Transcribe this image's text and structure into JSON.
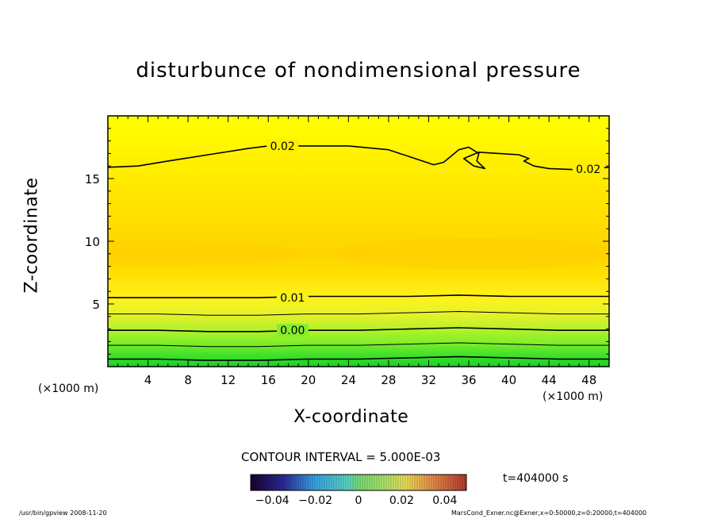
{
  "chart_data": {
    "type": "heatmap",
    "title": "disturbunce of nondimensional pressure",
    "xlabel": "X-coordinate",
    "ylabel": "Z-coordinate",
    "x_unit": "(×1000 m)",
    "xlim": [
      0,
      50
    ],
    "ylim": [
      0,
      20
    ],
    "x_ticks": [
      4,
      8,
      12,
      16,
      20,
      24,
      28,
      32,
      36,
      40,
      44,
      48
    ],
    "y_ticks": [
      5,
      10,
      15
    ],
    "color_levels": [
      {
        "z": 0.0,
        "value": -0.002,
        "color": "#1ecf2a"
      },
      {
        "z": 0.6,
        "value": 0.0,
        "color": "#2fdc2a"
      },
      {
        "z": 1.3,
        "value": 0.003,
        "color": "#58e62a"
      },
      {
        "z": 2.0,
        "value": 0.006,
        "color": "#86ee2a"
      },
      {
        "z": 2.8,
        "value": 0.009,
        "color": "#abf22a"
      },
      {
        "z": 3.5,
        "value": 0.012,
        "color": "#ccf12a"
      },
      {
        "z": 4.3,
        "value": 0.015,
        "color": "#e8f22a"
      },
      {
        "z": 5.5,
        "value": 0.02,
        "color": "#fff21c"
      },
      {
        "z": 7.5,
        "value": 0.024,
        "color": "#ffdf00"
      },
      {
        "z": 9.0,
        "value": 0.027,
        "color": "#ffd400"
      },
      {
        "z": 11.5,
        "value": 0.025,
        "color": "#ffdd00"
      },
      {
        "z": 14.0,
        "value": 0.023,
        "color": "#ffe600"
      },
      {
        "z": 16.0,
        "value": 0.02,
        "color": "#fff000"
      },
      {
        "z": 20.0,
        "value": 0.017,
        "color": "#ffff00"
      }
    ],
    "contours": [
      {
        "level": 0.02,
        "label": "0.02",
        "points": [
          [
            0,
            15.9
          ],
          [
            3,
            16.0
          ],
          [
            6,
            16.4
          ],
          [
            10,
            16.9
          ],
          [
            14,
            17.4
          ],
          [
            16,
            17.6
          ],
          [
            19,
            17.6
          ],
          [
            24,
            17.6
          ],
          [
            28,
            17.3
          ],
          [
            31,
            16.5
          ],
          [
            32.5,
            16.1
          ],
          [
            33.5,
            16.3
          ],
          [
            35,
            17.3
          ],
          [
            36,
            17.5
          ],
          [
            37,
            17.0
          ],
          [
            36.8,
            16.4
          ],
          [
            37.6,
            15.8
          ],
          [
            36.5,
            16.0
          ],
          [
            35.5,
            16.6
          ],
          [
            37,
            17.1
          ],
          [
            39,
            17.0
          ],
          [
            41,
            16.9
          ],
          [
            42,
            16.6
          ],
          [
            41.5,
            16.4
          ],
          [
            42.5,
            16.0
          ],
          [
            44,
            15.8
          ],
          [
            47,
            15.7
          ],
          [
            50,
            15.9
          ]
        ]
      },
      {
        "level": 0.02,
        "label": "0.02",
        "points": [
          [
            0,
            5.5
          ],
          [
            5,
            5.5
          ],
          [
            10,
            5.5
          ],
          [
            15,
            5.5
          ],
          [
            20,
            5.6
          ],
          [
            25,
            5.6
          ],
          [
            30,
            5.6
          ],
          [
            35,
            5.7
          ],
          [
            40,
            5.6
          ],
          [
            45,
            5.6
          ],
          [
            50,
            5.6
          ]
        ]
      },
      {
        "level": 0.015,
        "label": "",
        "points": [
          [
            0,
            4.2
          ],
          [
            5,
            4.2
          ],
          [
            10,
            4.1
          ],
          [
            15,
            4.1
          ],
          [
            20,
            4.2
          ],
          [
            25,
            4.2
          ],
          [
            30,
            4.3
          ],
          [
            35,
            4.4
          ],
          [
            40,
            4.3
          ],
          [
            45,
            4.2
          ],
          [
            50,
            4.2
          ]
        ]
      },
      {
        "level": 0.01,
        "label": "0.01",
        "points": [
          [
            0,
            2.9
          ],
          [
            5,
            2.9
          ],
          [
            10,
            2.8
          ],
          [
            15,
            2.8
          ],
          [
            20,
            2.9
          ],
          [
            25,
            2.9
          ],
          [
            30,
            3.0
          ],
          [
            35,
            3.1
          ],
          [
            40,
            3.0
          ],
          [
            45,
            2.9
          ],
          [
            50,
            2.9
          ]
        ]
      },
      {
        "level": 0.005,
        "label": "",
        "points": [
          [
            0,
            1.7
          ],
          [
            5,
            1.7
          ],
          [
            10,
            1.6
          ],
          [
            15,
            1.6
          ],
          [
            20,
            1.7
          ],
          [
            25,
            1.7
          ],
          [
            30,
            1.8
          ],
          [
            35,
            1.9
          ],
          [
            40,
            1.8
          ],
          [
            45,
            1.7
          ],
          [
            50,
            1.7
          ]
        ]
      },
      {
        "level": 0.0,
        "label": "0.00",
        "points": [
          [
            0,
            0.6
          ],
          [
            5,
            0.6
          ],
          [
            10,
            0.5
          ],
          [
            15,
            0.5
          ],
          [
            20,
            0.6
          ],
          [
            25,
            0.6
          ],
          [
            30,
            0.7
          ],
          [
            35,
            0.8
          ],
          [
            40,
            0.7
          ],
          [
            45,
            0.6
          ],
          [
            50,
            0.6
          ]
        ]
      }
    ],
    "label_positions": [
      [
        16,
        17.6
      ],
      [
        46.5,
        15.75
      ],
      [
        17,
        5.5
      ],
      [
        17,
        2.9
      ],
      [
        17,
        0.55
      ]
    ],
    "colorbar": {
      "vmin": -0.05,
      "vmax": 0.05,
      "ticks": [
        -0.04,
        -0.02,
        0,
        0.02,
        0.04
      ],
      "tick_labels": [
        "−0.04",
        "−0.02",
        "0",
        "0.02",
        "0.04"
      ],
      "stops": [
        {
          "v": -0.05,
          "color": "#1a0030"
        },
        {
          "v": -0.035,
          "color": "#2a2a9a"
        },
        {
          "v": -0.02,
          "color": "#3aa8e8"
        },
        {
          "v": -0.005,
          "color": "#5ad8c8"
        },
        {
          "v": 0.0,
          "color": "#7ae07a"
        },
        {
          "v": 0.012,
          "color": "#aee86a"
        },
        {
          "v": 0.022,
          "color": "#f2e05a"
        },
        {
          "v": 0.035,
          "color": "#e88a4a"
        },
        {
          "v": 0.05,
          "color": "#b83a2a"
        }
      ]
    }
  },
  "labels": {
    "contour_interval": "CONTOUR INTERVAL = 5.000E-03",
    "time": "t=404000 s",
    "footer_left": "/usr/bin/gpview  2008-11-20",
    "footer_right": "MarsCond_Exner.nc@Exner,x=0:50000,z=0:20000,t=404000",
    "x_unit_left": "(×1000 m)",
    "x_unit_right": "(×1000 m)"
  }
}
